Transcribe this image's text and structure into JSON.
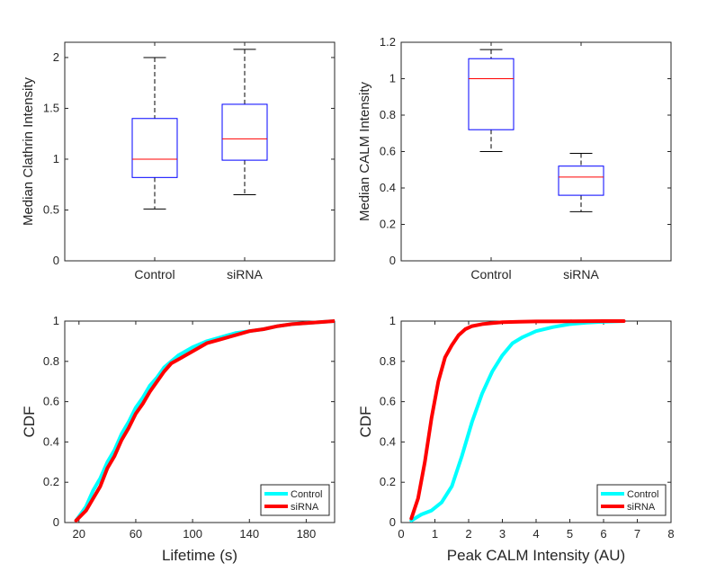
{
  "chart_data": [
    {
      "type": "box",
      "xlabel": "",
      "ylabel": "Median Clathrin Intensity",
      "ylim": [
        0,
        2.15
      ],
      "yticks": [
        0,
        0.5,
        1,
        1.5,
        2
      ],
      "ytick_labels": [
        "0",
        "0.5",
        "1",
        "1.5",
        "2"
      ],
      "categories": [
        "Control",
        "siRNA"
      ],
      "boxes": [
        {
          "category": "Control",
          "whisker_low": 0.51,
          "q1": 0.82,
          "median": 1.0,
          "q3": 1.4,
          "whisker_high": 2.0
        },
        {
          "category": "siRNA",
          "whisker_low": 0.65,
          "q1": 0.99,
          "median": 1.2,
          "q3": 1.54,
          "whisker_high": 2.08
        }
      ],
      "colors": {
        "box": "#0000ff",
        "median": "#ff0000",
        "whisker": "#000000"
      }
    },
    {
      "type": "box",
      "xlabel": "",
      "ylabel": "Median CALM Intensity",
      "ylim": [
        0,
        1.2
      ],
      "yticks": [
        0,
        0.2,
        0.4,
        0.6,
        0.8,
        1,
        1.2
      ],
      "ytick_labels": [
        "0",
        "0.2",
        "0.4",
        "0.6",
        "0.8",
        "1",
        "1.2"
      ],
      "categories": [
        "Control",
        "siRNA"
      ],
      "boxes": [
        {
          "category": "Control",
          "whisker_low": 0.6,
          "q1": 0.72,
          "median": 1.0,
          "q3": 1.11,
          "whisker_high": 1.16
        },
        {
          "category": "siRNA",
          "whisker_low": 0.27,
          "q1": 0.36,
          "median": 0.46,
          "q3": 0.52,
          "whisker_high": 0.59
        }
      ],
      "colors": {
        "box": "#0000ff",
        "median": "#ff0000",
        "whisker": "#000000"
      }
    },
    {
      "type": "line",
      "xlabel": "Lifetime (s)",
      "ylabel": "CDF",
      "xlim": [
        10,
        200
      ],
      "ylim": [
        0,
        1
      ],
      "xticks": [
        20,
        60,
        100,
        140,
        180
      ],
      "xtick_labels": [
        "20",
        "60",
        "100",
        "140",
        "180"
      ],
      "yticks": [
        0,
        0.2,
        0.4,
        0.6,
        0.8,
        1
      ],
      "ytick_labels": [
        "0",
        "0.2",
        "0.4",
        "0.6",
        "0.8",
        "1"
      ],
      "legend": "bottom-right",
      "series": [
        {
          "name": "Control",
          "color": "#00ffff",
          "x": [
            18,
            25,
            30,
            35,
            40,
            45,
            50,
            55,
            60,
            65,
            70,
            75,
            80,
            85,
            90,
            100,
            110,
            120,
            130,
            140,
            150,
            160,
            170,
            180,
            190,
            200
          ],
          "y": [
            0.01,
            0.08,
            0.16,
            0.22,
            0.3,
            0.36,
            0.44,
            0.5,
            0.57,
            0.62,
            0.68,
            0.72,
            0.77,
            0.8,
            0.83,
            0.87,
            0.9,
            0.92,
            0.94,
            0.95,
            0.96,
            0.975,
            0.985,
            0.99,
            0.995,
            1.0
          ]
        },
        {
          "name": "siRNA",
          "color": "#ff0000",
          "x": [
            18,
            25,
            30,
            35,
            40,
            45,
            50,
            55,
            60,
            65,
            70,
            75,
            80,
            85,
            90,
            100,
            110,
            120,
            130,
            140,
            150,
            160,
            170,
            180,
            190,
            200
          ],
          "y": [
            0.01,
            0.06,
            0.12,
            0.18,
            0.27,
            0.33,
            0.41,
            0.47,
            0.54,
            0.59,
            0.65,
            0.7,
            0.75,
            0.79,
            0.81,
            0.85,
            0.89,
            0.91,
            0.93,
            0.95,
            0.96,
            0.975,
            0.985,
            0.99,
            0.995,
            1.0
          ]
        }
      ]
    },
    {
      "type": "line",
      "xlabel": "Peak CALM Intensity (AU)",
      "ylabel": "CDF",
      "xlim": [
        0,
        8
      ],
      "ylim": [
        0,
        1
      ],
      "xticks": [
        0,
        1,
        2,
        3,
        4,
        5,
        6,
        7,
        8
      ],
      "xtick_labels": [
        "0",
        "1",
        "2",
        "3",
        "4",
        "5",
        "6",
        "7",
        "8"
      ],
      "yticks": [
        0,
        0.2,
        0.4,
        0.6,
        0.8,
        1
      ],
      "ytick_labels": [
        "0",
        "0.2",
        "0.4",
        "0.6",
        "0.8",
        "1"
      ],
      "legend": "bottom-right",
      "series": [
        {
          "name": "Control",
          "color": "#00ffff",
          "x": [
            0.3,
            0.6,
            0.9,
            1.2,
            1.5,
            1.8,
            2.1,
            2.4,
            2.7,
            3.0,
            3.3,
            3.6,
            4.0,
            4.5,
            5.0,
            5.5,
            6.0,
            6.6
          ],
          "y": [
            0.01,
            0.04,
            0.06,
            0.1,
            0.18,
            0.33,
            0.5,
            0.64,
            0.75,
            0.83,
            0.89,
            0.92,
            0.95,
            0.97,
            0.985,
            0.992,
            0.997,
            1.0
          ]
        },
        {
          "name": "siRNA",
          "color": "#ff0000",
          "x": [
            0.3,
            0.5,
            0.7,
            0.9,
            1.1,
            1.3,
            1.5,
            1.7,
            1.9,
            2.1,
            2.4,
            2.7,
            3.0,
            3.5,
            4.0,
            5.0,
            6.0,
            6.6
          ],
          "y": [
            0.02,
            0.12,
            0.3,
            0.52,
            0.7,
            0.82,
            0.88,
            0.93,
            0.96,
            0.975,
            0.985,
            0.99,
            0.994,
            0.997,
            0.998,
            0.999,
            1.0,
            1.0
          ]
        }
      ]
    }
  ]
}
